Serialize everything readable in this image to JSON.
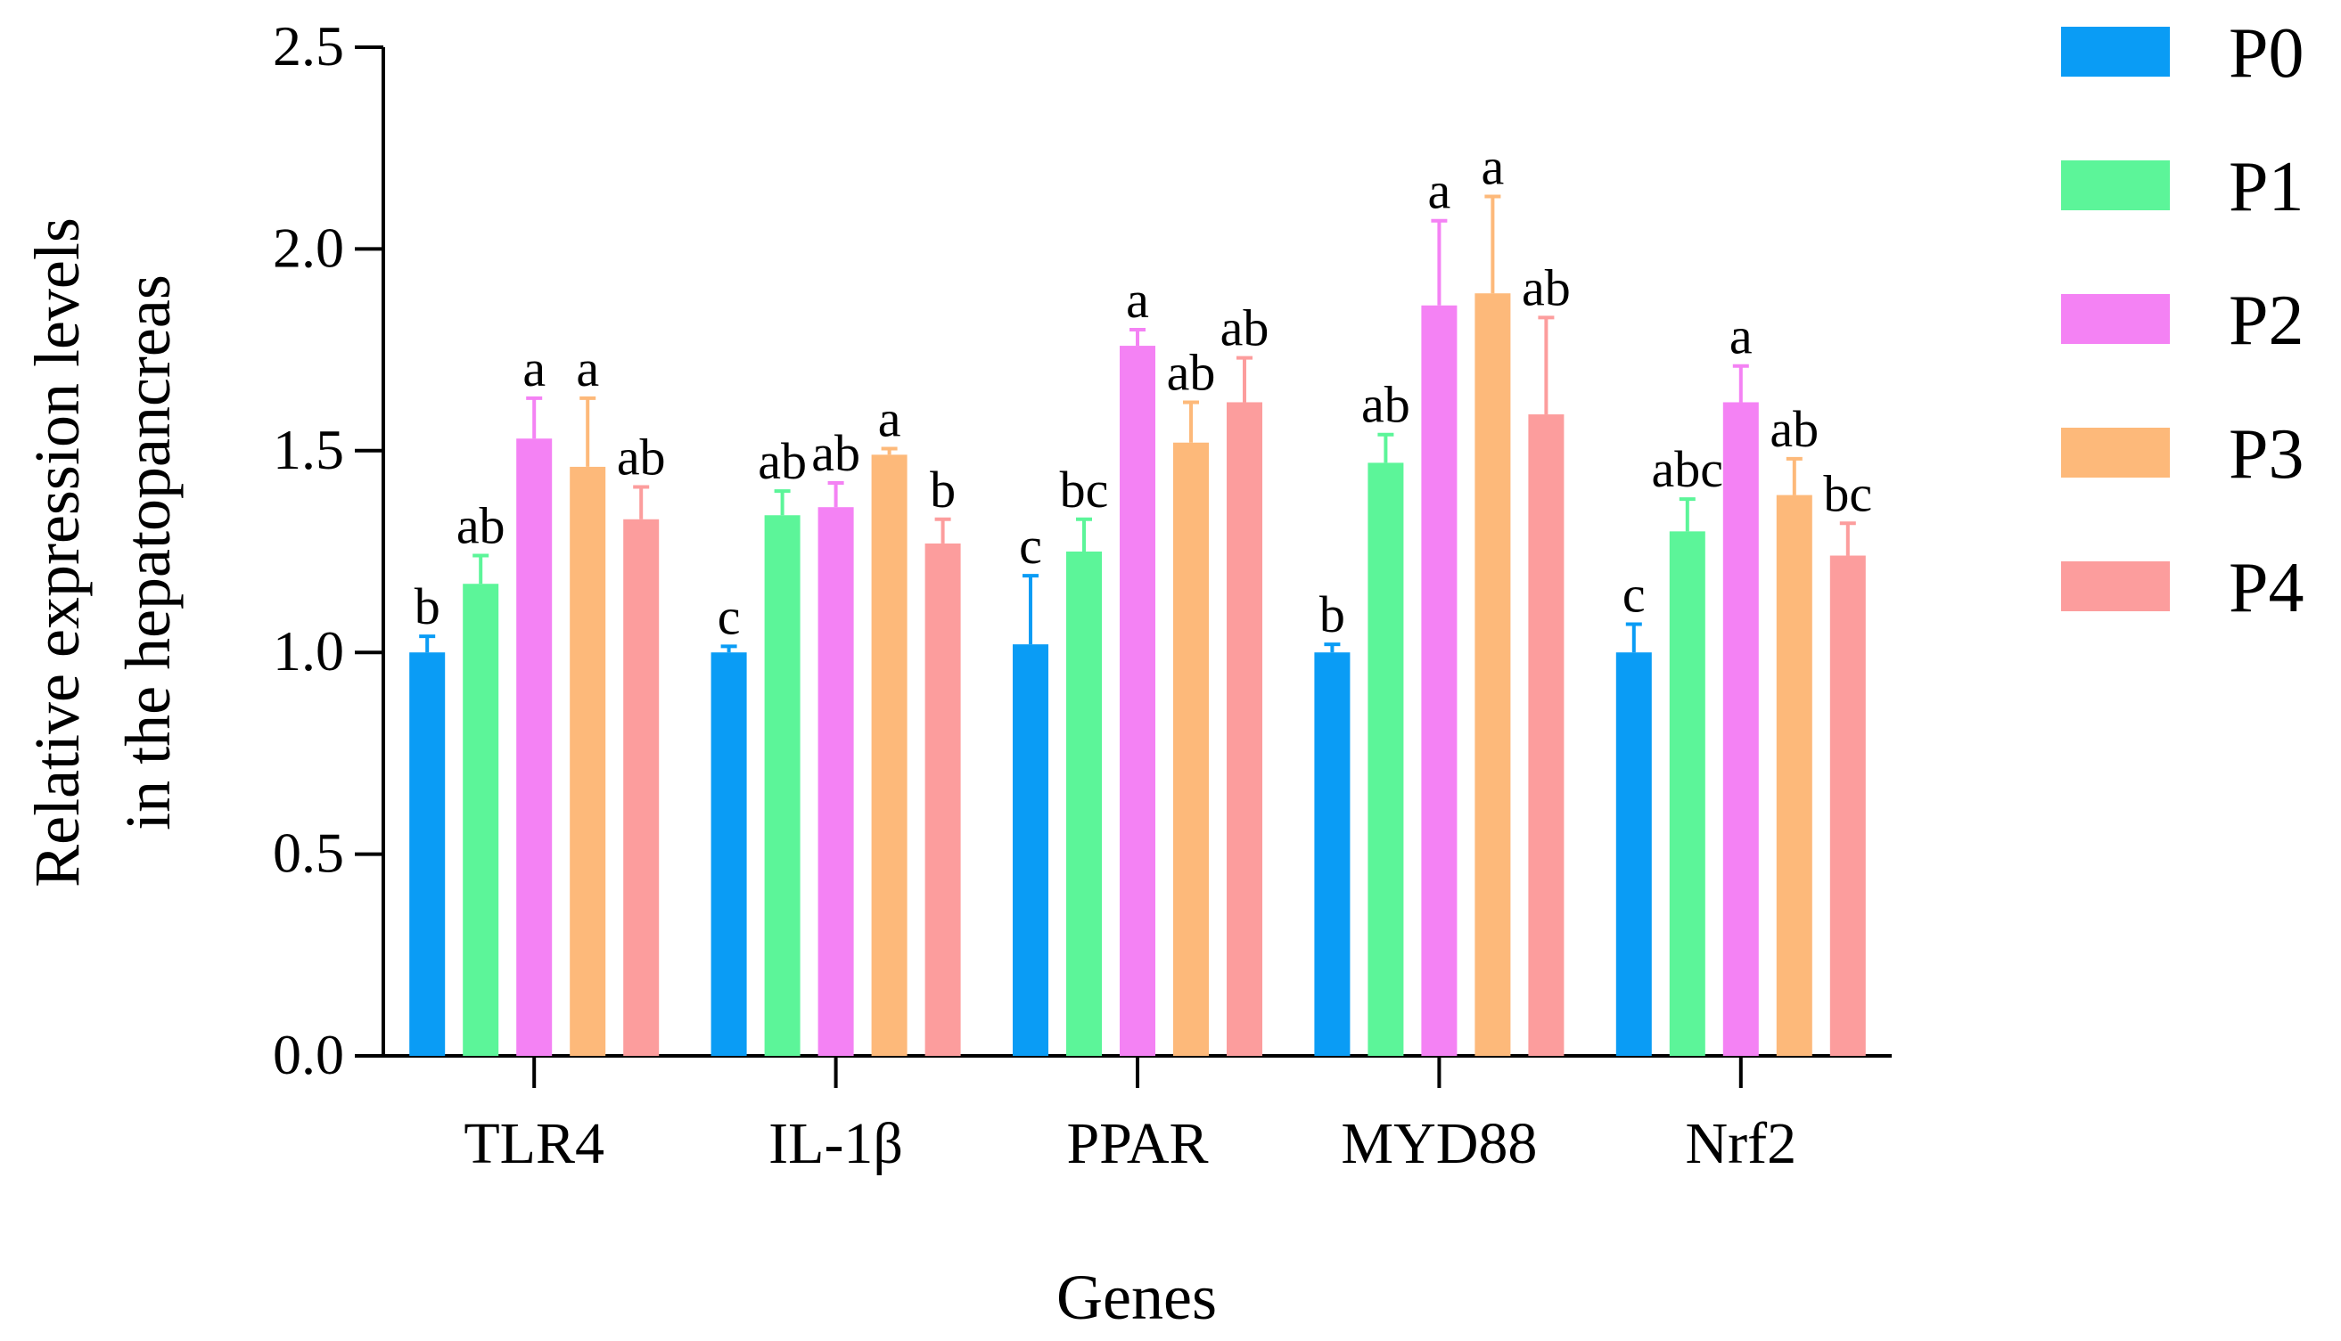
{
  "chart_data": {
    "type": "bar",
    "title": "",
    "xlabel": "Genes",
    "ylabel": [
      "Relative expression levels",
      "in the hepatopancreas"
    ],
    "ylim": [
      0,
      2.5
    ],
    "yticks": [
      "0.0",
      "0.5",
      "1.0",
      "1.5",
      "2.0",
      "2.5"
    ],
    "categories": [
      "TLR4",
      "IL-1β",
      "PPAR",
      "MYD88",
      "Nrf2"
    ],
    "legend_position": "right",
    "series": [
      {
        "name": "P0",
        "color": "#0a9cf5",
        "values": [
          1.0,
          1.0,
          1.02,
          1.0,
          1.0
        ],
        "errors": [
          0.04,
          0.015,
          0.17,
          0.02,
          0.07
        ],
        "labels": [
          "b",
          "c",
          "c",
          "b",
          "c"
        ]
      },
      {
        "name": "P1",
        "color": "#5cf599",
        "values": [
          1.17,
          1.34,
          1.25,
          1.47,
          1.3
        ],
        "errors": [
          0.07,
          0.06,
          0.08,
          0.07,
          0.08
        ],
        "labels": [
          "ab",
          "ab",
          "bc",
          "ab",
          "abc"
        ]
      },
      {
        "name": "P2",
        "color": "#f482f4",
        "values": [
          1.53,
          1.36,
          1.76,
          1.86,
          1.62
        ],
        "errors": [
          0.1,
          0.06,
          0.04,
          0.21,
          0.09
        ],
        "labels": [
          "a",
          "ab",
          "a",
          "a",
          "a"
        ]
      },
      {
        "name": "P3",
        "color": "#fdb97a",
        "values": [
          1.46,
          1.49,
          1.52,
          1.89,
          1.39
        ],
        "errors": [
          0.17,
          0.015,
          0.1,
          0.24,
          0.09
        ],
        "labels": [
          "a",
          "a",
          "ab",
          "a",
          "ab"
        ]
      },
      {
        "name": "P4",
        "color": "#fc9d9d",
        "values": [
          1.33,
          1.27,
          1.62,
          1.59,
          1.24
        ],
        "errors": [
          0.08,
          0.06,
          0.11,
          0.24,
          0.08
        ],
        "labels": [
          "ab",
          "b",
          "ab",
          "ab",
          "bc"
        ]
      }
    ]
  }
}
